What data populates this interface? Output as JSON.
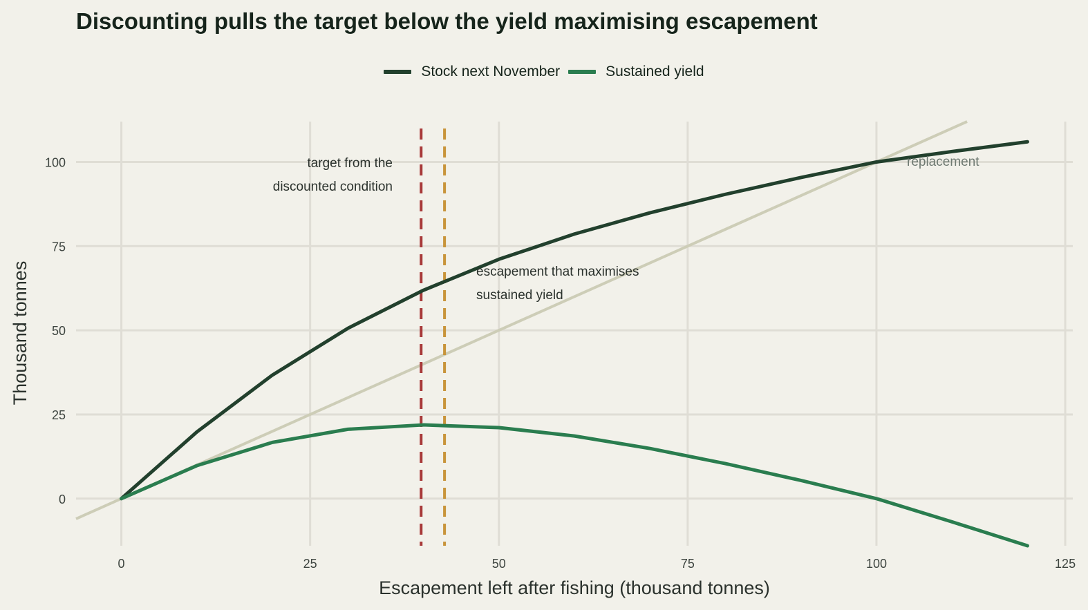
{
  "chart_data": {
    "type": "line",
    "title": "Discounting pulls the target below the yield maximising escapement",
    "xlabel": "Escapement left after fishing (thousand tonnes)",
    "ylabel": "Thousand tonnes",
    "xlim": [
      -6,
      126
    ],
    "ylim": [
      -14,
      112
    ],
    "x_ticks": [
      0,
      25,
      50,
      75,
      100,
      125
    ],
    "y_ticks": [
      0,
      25,
      50,
      75,
      100
    ],
    "grid": true,
    "legend_position": "top-center",
    "series": [
      {
        "name": "Stock next November",
        "color": "#22402d",
        "x": [
          0,
          10,
          20,
          30,
          40,
          50,
          60,
          70,
          80,
          90,
          100,
          110,
          120
        ],
        "y": [
          0,
          19.8,
          36.7,
          50.6,
          61.9,
          71.1,
          78.6,
          84.9,
          90.4,
          95.4,
          100,
          103.1,
          106
        ]
      },
      {
        "name": "Sustained yield",
        "color": "#2a7d4f",
        "x": [
          0,
          10,
          20,
          30,
          40,
          50,
          60,
          70,
          80,
          90,
          100,
          110,
          120
        ],
        "y": [
          0,
          9.8,
          16.7,
          20.6,
          21.9,
          21.1,
          18.6,
          14.9,
          10.4,
          5.4,
          0,
          -6.9,
          -14
        ]
      }
    ],
    "reference_lines": [
      {
        "label": "replacement",
        "color": "#cdcdb7",
        "x": [
          -6,
          112
        ],
        "y": [
          -6,
          112
        ]
      },
      {
        "label": "target from the discounted condition",
        "color": "#a83a3a",
        "x": 39.7
      },
      {
        "label": "escapement that maximises sustained yield",
        "color": "#c8943a",
        "x": 42.8
      }
    ],
    "annotations": {
      "target_line1": "target from the",
      "target_line2": "discounted condition",
      "msy_line1": "escapement that maximises",
      "msy_line2": "sustained yield",
      "replacement": "replacement"
    }
  }
}
